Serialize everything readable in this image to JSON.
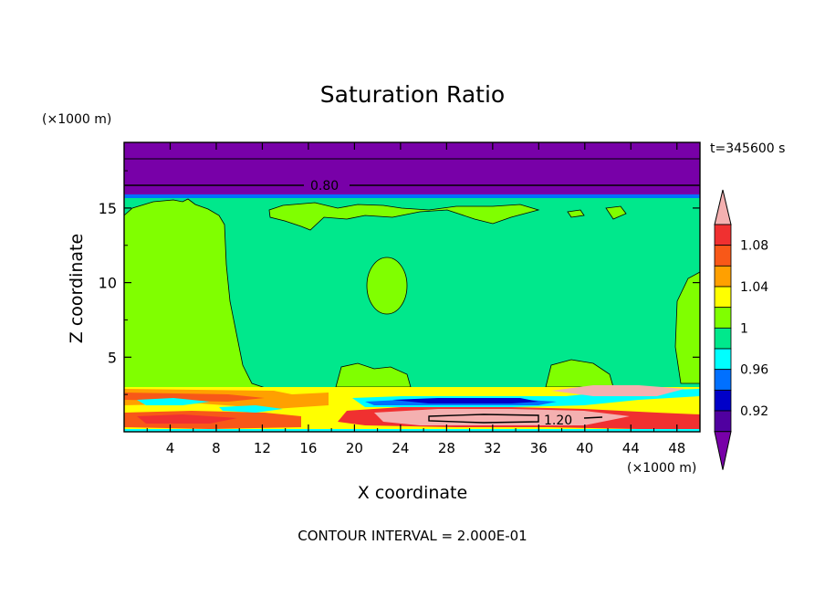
{
  "chart_data": {
    "type": "heatmap",
    "title": "Saturation Ratio",
    "xlabel": "X coordinate",
    "ylabel": "Z coordinate",
    "x_unit": "(×1000 m)",
    "z_unit": "(×1000 m)",
    "time_label": "t=345600 s",
    "footer": "CONTOUR INTERVAL = 2.000E-01",
    "xlim": [
      0,
      50
    ],
    "ylim": [
      0,
      19.4
    ],
    "x_ticks": [
      4,
      8,
      12,
      16,
      20,
      24,
      28,
      32,
      36,
      40,
      44,
      48
    ],
    "y_ticks": [
      5,
      10,
      15
    ],
    "contour_lines": [
      {
        "label": "0.80",
        "label_x": 18.3,
        "level_z": 16.9
      },
      {
        "label": "1.20",
        "label_x": 38.3,
        "level_z": 0.9
      }
    ],
    "colorbar": {
      "labels": [
        "1.08",
        "1.04",
        "1",
        "0.96",
        "0.92"
      ],
      "levels": [
        {
          "min": 1.1,
          "color": "#f4b0b0"
        },
        {
          "min": 1.08,
          "max": 1.1,
          "color": "#f03030"
        },
        {
          "min": 1.06,
          "max": 1.08,
          "color": "#f85818"
        },
        {
          "min": 1.04,
          "max": 1.06,
          "color": "#ffa000"
        },
        {
          "min": 1.02,
          "max": 1.04,
          "color": "#ffff00"
        },
        {
          "min": 1.0,
          "max": 1.02,
          "color": "#80ff00"
        },
        {
          "min": 0.98,
          "max": 1.0,
          "color": "#00e88c"
        },
        {
          "min": 0.96,
          "max": 0.98,
          "color": "#00ffff"
        },
        {
          "min": 0.94,
          "max": 0.96,
          "color": "#0070ff"
        },
        {
          "min": 0.92,
          "max": 0.94,
          "color": "#0000c8"
        },
        {
          "min": 0.9,
          "max": 0.92,
          "color": "#5000a0"
        },
        {
          "max": 0.9,
          "color": "#7800a8"
        }
      ]
    },
    "regions": [
      {
        "name": "upper-dry-layer",
        "color": "#7800a8",
        "z_min": 16.3,
        "z_max": 19.4
      },
      {
        "name": "tropopause-band",
        "color": "#0070ff",
        "z_min": 16.1,
        "z_max": 16.3
      },
      {
        "name": "free-troposphere",
        "color": "#00e88c",
        "z_min": 3.2,
        "z_max": 16.1
      },
      {
        "name": "left-moist-column",
        "color": "#80ff00",
        "x_min": 0,
        "x_max": 13,
        "z_min": 3.2,
        "z_max": 15.9
      },
      {
        "name": "boundary-layer",
        "color": "#ffff00",
        "z_min": 0,
        "z_max": 3.2
      },
      {
        "name": "subcloud-dry-streak",
        "color": "#0000c8",
        "x_min": 20,
        "x_max": 38,
        "z_min": 2.0,
        "z_max": 2.6
      },
      {
        "name": "supersaturated-core",
        "color": "#f4b0b0",
        "x_min": 19,
        "x_max": 44,
        "z_min": 0.4,
        "z_max": 1.6
      }
    ]
  }
}
